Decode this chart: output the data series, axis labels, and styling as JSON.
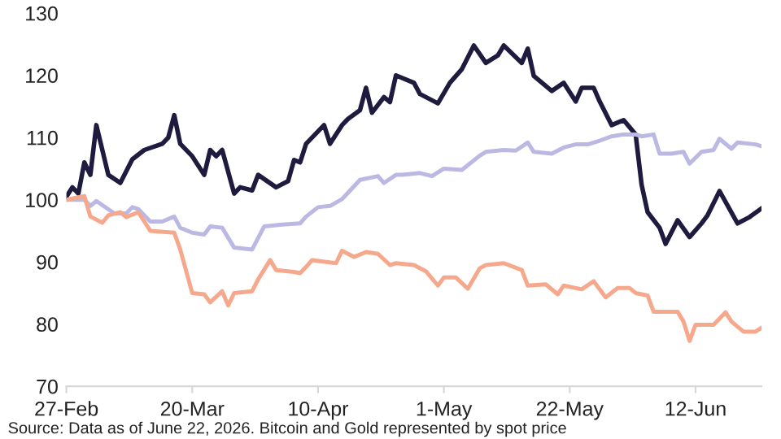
{
  "chart_data": {
    "type": "line",
    "xlim": [
      "2026-02-27",
      "2026-06-23"
    ],
    "xticks": [
      {
        "value": "2026-02-27",
        "label": "27-Feb"
      },
      {
        "value": "2026-03-20",
        "label": "20-Mar"
      },
      {
        "value": "2026-04-10",
        "label": "10-Apr"
      },
      {
        "value": "2026-05-01",
        "label": "1-May"
      },
      {
        "value": "2026-05-22",
        "label": "22-May"
      },
      {
        "value": "2026-06-12",
        "label": "12-Jun"
      }
    ],
    "ylim": [
      70,
      130
    ],
    "yticks": [
      70,
      80,
      90,
      100,
      110,
      120,
      130
    ],
    "grid": false,
    "legend": false,
    "series": [
      {
        "color": "#1e1b3f",
        "x": [
          "2026-02-27",
          "2026-02-28",
          "2026-03-01",
          "2026-03-02",
          "2026-03-03",
          "2026-03-04",
          "2026-03-06",
          "2026-03-08",
          "2026-03-10",
          "2026-03-12",
          "2026-03-15",
          "2026-03-16",
          "2026-03-17",
          "2026-03-18",
          "2026-03-20",
          "2026-03-22",
          "2026-03-23",
          "2026-03-24",
          "2026-03-25",
          "2026-03-27",
          "2026-03-28",
          "2026-03-30",
          "2026-03-31",
          "2026-04-03",
          "2026-04-05",
          "2026-04-06",
          "2026-04-07",
          "2026-04-08",
          "2026-04-11",
          "2026-04-12",
          "2026-04-14",
          "2026-04-15",
          "2026-04-17",
          "2026-04-18",
          "2026-04-19",
          "2026-04-21",
          "2026-04-22",
          "2026-04-23",
          "2026-04-26",
          "2026-04-27",
          "2026-04-30",
          "2026-05-02",
          "2026-05-04",
          "2026-05-06",
          "2026-05-08",
          "2026-05-10",
          "2026-05-11",
          "2026-05-14",
          "2026-05-15",
          "2026-05-16",
          "2026-05-19",
          "2026-05-21",
          "2026-05-23",
          "2026-05-24",
          "2026-05-26",
          "2026-05-27",
          "2026-05-29",
          "2026-05-31",
          "2026-06-02",
          "2026-06-03",
          "2026-06-04",
          "2026-06-06",
          "2026-06-07",
          "2026-06-09",
          "2026-06-11",
          "2026-06-13",
          "2026-06-14",
          "2026-06-16",
          "2026-06-19",
          "2026-06-21",
          "2026-06-23"
        ],
        "values": [
          100.5,
          102,
          101,
          106,
          104,
          112,
          104,
          102.7,
          106.5,
          108,
          109,
          110,
          113.6,
          109,
          107,
          104,
          108,
          107,
          108,
          101,
          102,
          101.5,
          104,
          102,
          103,
          106.4,
          106,
          109,
          112,
          109,
          112,
          113,
          114.4,
          118,
          114,
          116.5,
          115.7,
          120,
          118.8,
          117,
          115.5,
          118.8,
          121,
          124.8,
          122,
          123.2,
          124.8,
          122,
          124.3,
          119.9,
          117.5,
          118.8,
          115.8,
          118,
          118,
          115.8,
          112,
          112.8,
          110.5,
          102.4,
          98,
          95.5,
          92.9,
          96.7,
          94,
          96.2,
          97.5,
          101.4,
          96.2,
          97.2,
          98.6
        ]
      },
      {
        "color": "#bcb8e4",
        "x": [
          "2026-02-27",
          "2026-03-02",
          "2026-03-03",
          "2026-03-04",
          "2026-03-07",
          "2026-03-09",
          "2026-03-10",
          "2026-03-11",
          "2026-03-13",
          "2026-03-15",
          "2026-03-17",
          "2026-03-18",
          "2026-03-20",
          "2026-03-22",
          "2026-03-23",
          "2026-03-25",
          "2026-03-27",
          "2026-03-30",
          "2026-04-01",
          "2026-04-04",
          "2026-04-07",
          "2026-04-08",
          "2026-04-10",
          "2026-04-12",
          "2026-04-14",
          "2026-04-17",
          "2026-04-20",
          "2026-04-21",
          "2026-04-23",
          "2026-04-24",
          "2026-04-27",
          "2026-04-29",
          "2026-05-01",
          "2026-05-04",
          "2026-05-07",
          "2026-05-08",
          "2026-05-11",
          "2026-05-13",
          "2026-05-15",
          "2026-05-16",
          "2026-05-19",
          "2026-05-21",
          "2026-05-23",
          "2026-05-25",
          "2026-05-27",
          "2026-05-29",
          "2026-05-31",
          "2026-06-02",
          "2026-06-03",
          "2026-06-05",
          "2026-06-06",
          "2026-06-08",
          "2026-06-10",
          "2026-06-11",
          "2026-06-13",
          "2026-06-15",
          "2026-06-16",
          "2026-06-18",
          "2026-06-19",
          "2026-06-22",
          "2026-06-23"
        ],
        "values": [
          100,
          100,
          99,
          99.8,
          97.8,
          97.8,
          98.8,
          98.5,
          96.5,
          96.5,
          97.3,
          95.5,
          94.7,
          94.4,
          95.7,
          95.5,
          92.3,
          92,
          95.7,
          96,
          96.2,
          97.3,
          98.8,
          99,
          100.1,
          103.2,
          103.8,
          102.7,
          104,
          104,
          104.3,
          103.8,
          105,
          104.8,
          107.1,
          107.7,
          108,
          107.9,
          109.2,
          107.7,
          107.4,
          108.4,
          108.9,
          108.9,
          109.5,
          110.2,
          110.5,
          110.5,
          110.2,
          110.5,
          107.4,
          107.4,
          107.7,
          105.8,
          107.7,
          108,
          109.8,
          108.2,
          109.2,
          108.9,
          108.6
        ]
      },
      {
        "color": "#f5a88c",
        "x": [
          "2026-02-27",
          "2026-03-02",
          "2026-03-03",
          "2026-03-05",
          "2026-03-06",
          "2026-03-08",
          "2026-03-09",
          "2026-03-11",
          "2026-03-13",
          "2026-03-17",
          "2026-03-18",
          "2026-03-20",
          "2026-03-22",
          "2026-03-23",
          "2026-03-25",
          "2026-03-26",
          "2026-03-27",
          "2026-03-30",
          "2026-03-31",
          "2026-04-02",
          "2026-04-03",
          "2026-04-06",
          "2026-04-07",
          "2026-04-08",
          "2026-04-09",
          "2026-04-13",
          "2026-04-14",
          "2026-04-16",
          "2026-04-18",
          "2026-04-20",
          "2026-04-22",
          "2026-04-23",
          "2026-04-26",
          "2026-04-28",
          "2026-04-30",
          "2026-05-01",
          "2026-05-03",
          "2026-05-05",
          "2026-05-07",
          "2026-05-08",
          "2026-05-11",
          "2026-05-14",
          "2026-05-15",
          "2026-05-18",
          "2026-05-20",
          "2026-05-21",
          "2026-05-24",
          "2026-05-26",
          "2026-05-28",
          "2026-05-30",
          "2026-06-01",
          "2026-06-02",
          "2026-06-03",
          "2026-06-04",
          "2026-06-05",
          "2026-06-09",
          "2026-06-10",
          "2026-06-11",
          "2026-06-12",
          "2026-06-15",
          "2026-06-17",
          "2026-06-18",
          "2026-06-20",
          "2026-06-22",
          "2026-06-23"
        ],
        "values": [
          100,
          100.6,
          97.3,
          96.3,
          97.5,
          98,
          97.2,
          98,
          95,
          94.7,
          92,
          85,
          84.8,
          83.5,
          85.3,
          83,
          85,
          85.3,
          87.2,
          90.3,
          88.7,
          88.4,
          88.2,
          89.2,
          90.3,
          89.8,
          91.8,
          90.8,
          91.6,
          91.3,
          89.5,
          89.8,
          89.5,
          88.5,
          86.2,
          87.5,
          87.5,
          85.7,
          89,
          89.5,
          89.8,
          88.7,
          86.2,
          86.4,
          84.8,
          86.2,
          85.6,
          86.9,
          84.3,
          85.8,
          85.8,
          85,
          84.8,
          84.6,
          82,
          82,
          80.4,
          77.3,
          79.9,
          79.9,
          81.9,
          80.4,
          78.8,
          78.8,
          79.4
        ]
      }
    ],
    "annotations": [
      "Source: Data as of June 22, 2026. Bitcoin and Gold represented by spot price"
    ]
  }
}
